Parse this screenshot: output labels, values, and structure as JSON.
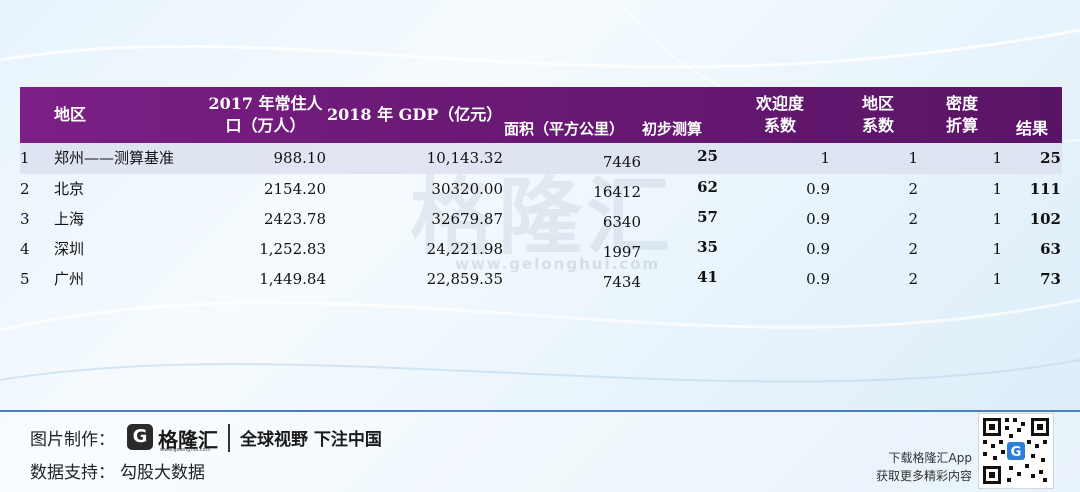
{
  "header": {
    "region": "地区",
    "population": [
      "2017 年常住人",
      "口（万人）"
    ],
    "gdp": "2018 年 GDP（亿元）",
    "area": "面积（平方公里）",
    "prelim": "初步测算",
    "popularity": [
      "欢迎度",
      "系数"
    ],
    "region_coef": [
      "地区",
      "系数"
    ],
    "density": [
      "密度",
      "折算"
    ],
    "result": "结果"
  },
  "rows": [
    {
      "idx": "1",
      "city": "郑州——测算基准",
      "population": "988.10",
      "gdp": "10,143.32",
      "area": "7446",
      "prelim": "25",
      "popularity": "1",
      "region_coef": "1",
      "density": "1",
      "result": "25"
    },
    {
      "idx": "2",
      "city": "北京",
      "population": "2154.20",
      "gdp": "30320.00",
      "area": "16412",
      "prelim": "62",
      "popularity": "0.9",
      "region_coef": "2",
      "density": "1",
      "result": "111"
    },
    {
      "idx": "3",
      "city": "上海",
      "population": "2423.78",
      "gdp": "32679.87",
      "area": "6340",
      "prelim": "57",
      "popularity": "0.9",
      "region_coef": "2",
      "density": "1",
      "result": "102"
    },
    {
      "idx": "4",
      "city": "深圳",
      "population": "1,252.83",
      "gdp": "24,221.98",
      "area": "1997",
      "prelim": "35",
      "popularity": "0.9",
      "region_coef": "2",
      "density": "1",
      "result": "63"
    },
    {
      "idx": "5",
      "city": "广州",
      "population": "1,449.84",
      "gdp": "22,859.35",
      "area": "7434",
      "prelim": "41",
      "popularity": "0.9",
      "region_coef": "2",
      "density": "1",
      "result": "73"
    }
  ],
  "watermark": {
    "text": "格隆汇",
    "url": "www.gelonghui.com"
  },
  "footer": {
    "made_by_label": "图片制作：",
    "logo_glyph": "G",
    "logo_name": "格隆汇",
    "logo_url": "www.gelonghui.com",
    "slogan": "全球视野 下注中国",
    "data_label": "数据支持：",
    "data_source": "勾股大数据",
    "app_line1": "下载格隆汇App",
    "app_line2": "获取更多精彩内容"
  },
  "colors": {
    "header_bg": "#6b1a76",
    "divider": "#4a7fc0"
  }
}
